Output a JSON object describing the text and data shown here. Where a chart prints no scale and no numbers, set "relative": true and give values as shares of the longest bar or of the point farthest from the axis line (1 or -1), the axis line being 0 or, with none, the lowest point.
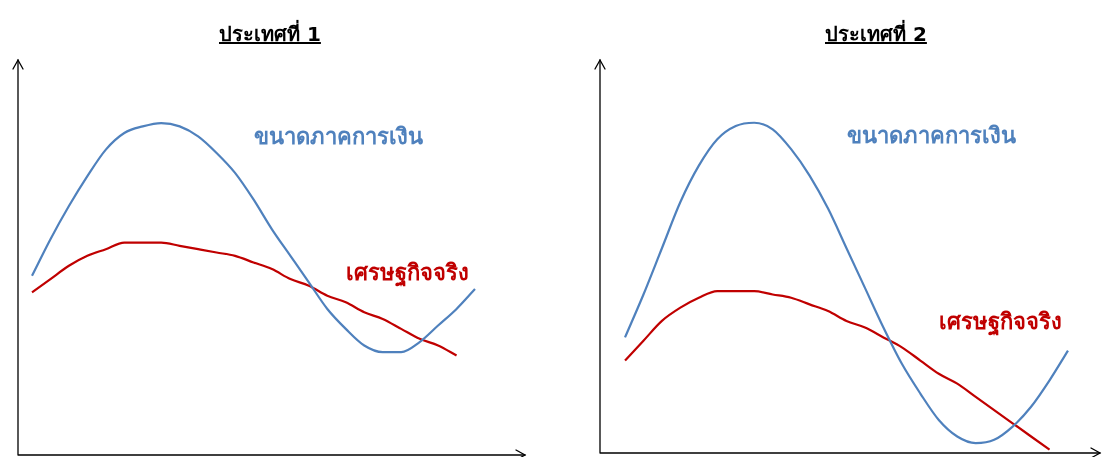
{
  "chart_data": [
    {
      "type": "line",
      "title": "ประเทศที่ 1",
      "relative": true,
      "categories": [
        null,
        null,
        null,
        null,
        null,
        null,
        null,
        null,
        null,
        null,
        null,
        null,
        null,
        null,
        null,
        null,
        null,
        null,
        null,
        null,
        null,
        null,
        null,
        null,
        null
      ],
      "series": [
        {
          "name": "ขนาดภาคการเงิน",
          "color": "#4f81bd",
          "values": [
            0.54,
            0.65,
            0.75,
            0.84,
            0.92,
            0.97,
            0.99,
            1,
            0.99,
            0.96,
            0.91,
            0.85,
            0.77,
            0.68,
            0.6,
            0.52,
            0.44,
            0.38,
            0.33,
            0.31,
            0.31,
            0.34,
            0.39,
            0.44,
            0.5
          ]
        },
        {
          "name": "เศรษฐกิจจริง",
          "color": "#c00000",
          "values": [
            0.49,
            0.53,
            0.57,
            0.6,
            0.62,
            0.64,
            0.64,
            0.64,
            0.63,
            0.62,
            0.61,
            0.6,
            0.58,
            0.56,
            0.53,
            0.51,
            0.48,
            0.46,
            0.43,
            0.41,
            0.38,
            0.35,
            0.33,
            0.3,
            null
          ]
        }
      ]
    },
    {
      "type": "line",
      "title": "ประเทศที่ 2",
      "relative": true,
      "categories": [
        null,
        null,
        null,
        null,
        null,
        null,
        null,
        null,
        null,
        null,
        null,
        null,
        null,
        null,
        null,
        null,
        null,
        null,
        null,
        null,
        null,
        null,
        null,
        null,
        null
      ],
      "series": [
        {
          "name": "ขนาดภาคการเงิน",
          "color": "#4f81bd",
          "values": [
            0.35,
            0.48,
            0.62,
            0.76,
            0.87,
            0.95,
            0.99,
            1,
            0.98,
            0.92,
            0.84,
            0.74,
            0.62,
            0.5,
            0.38,
            0.27,
            0.18,
            0.1,
            0.05,
            0.03,
            0.04,
            0.08,
            0.14,
            0.22,
            0.31
          ]
        },
        {
          "name": "เศรษฐกิจจริง",
          "color": "#c00000",
          "values": [
            0.28,
            0.34,
            0.4,
            0.44,
            0.47,
            0.49,
            0.49,
            0.49,
            0.48,
            0.47,
            0.45,
            0.43,
            0.4,
            0.38,
            0.35,
            0.32,
            0.28,
            0.24,
            0.21,
            0.17,
            0.13,
            0.09,
            0.05,
            0.01,
            null
          ]
        }
      ]
    }
  ]
}
